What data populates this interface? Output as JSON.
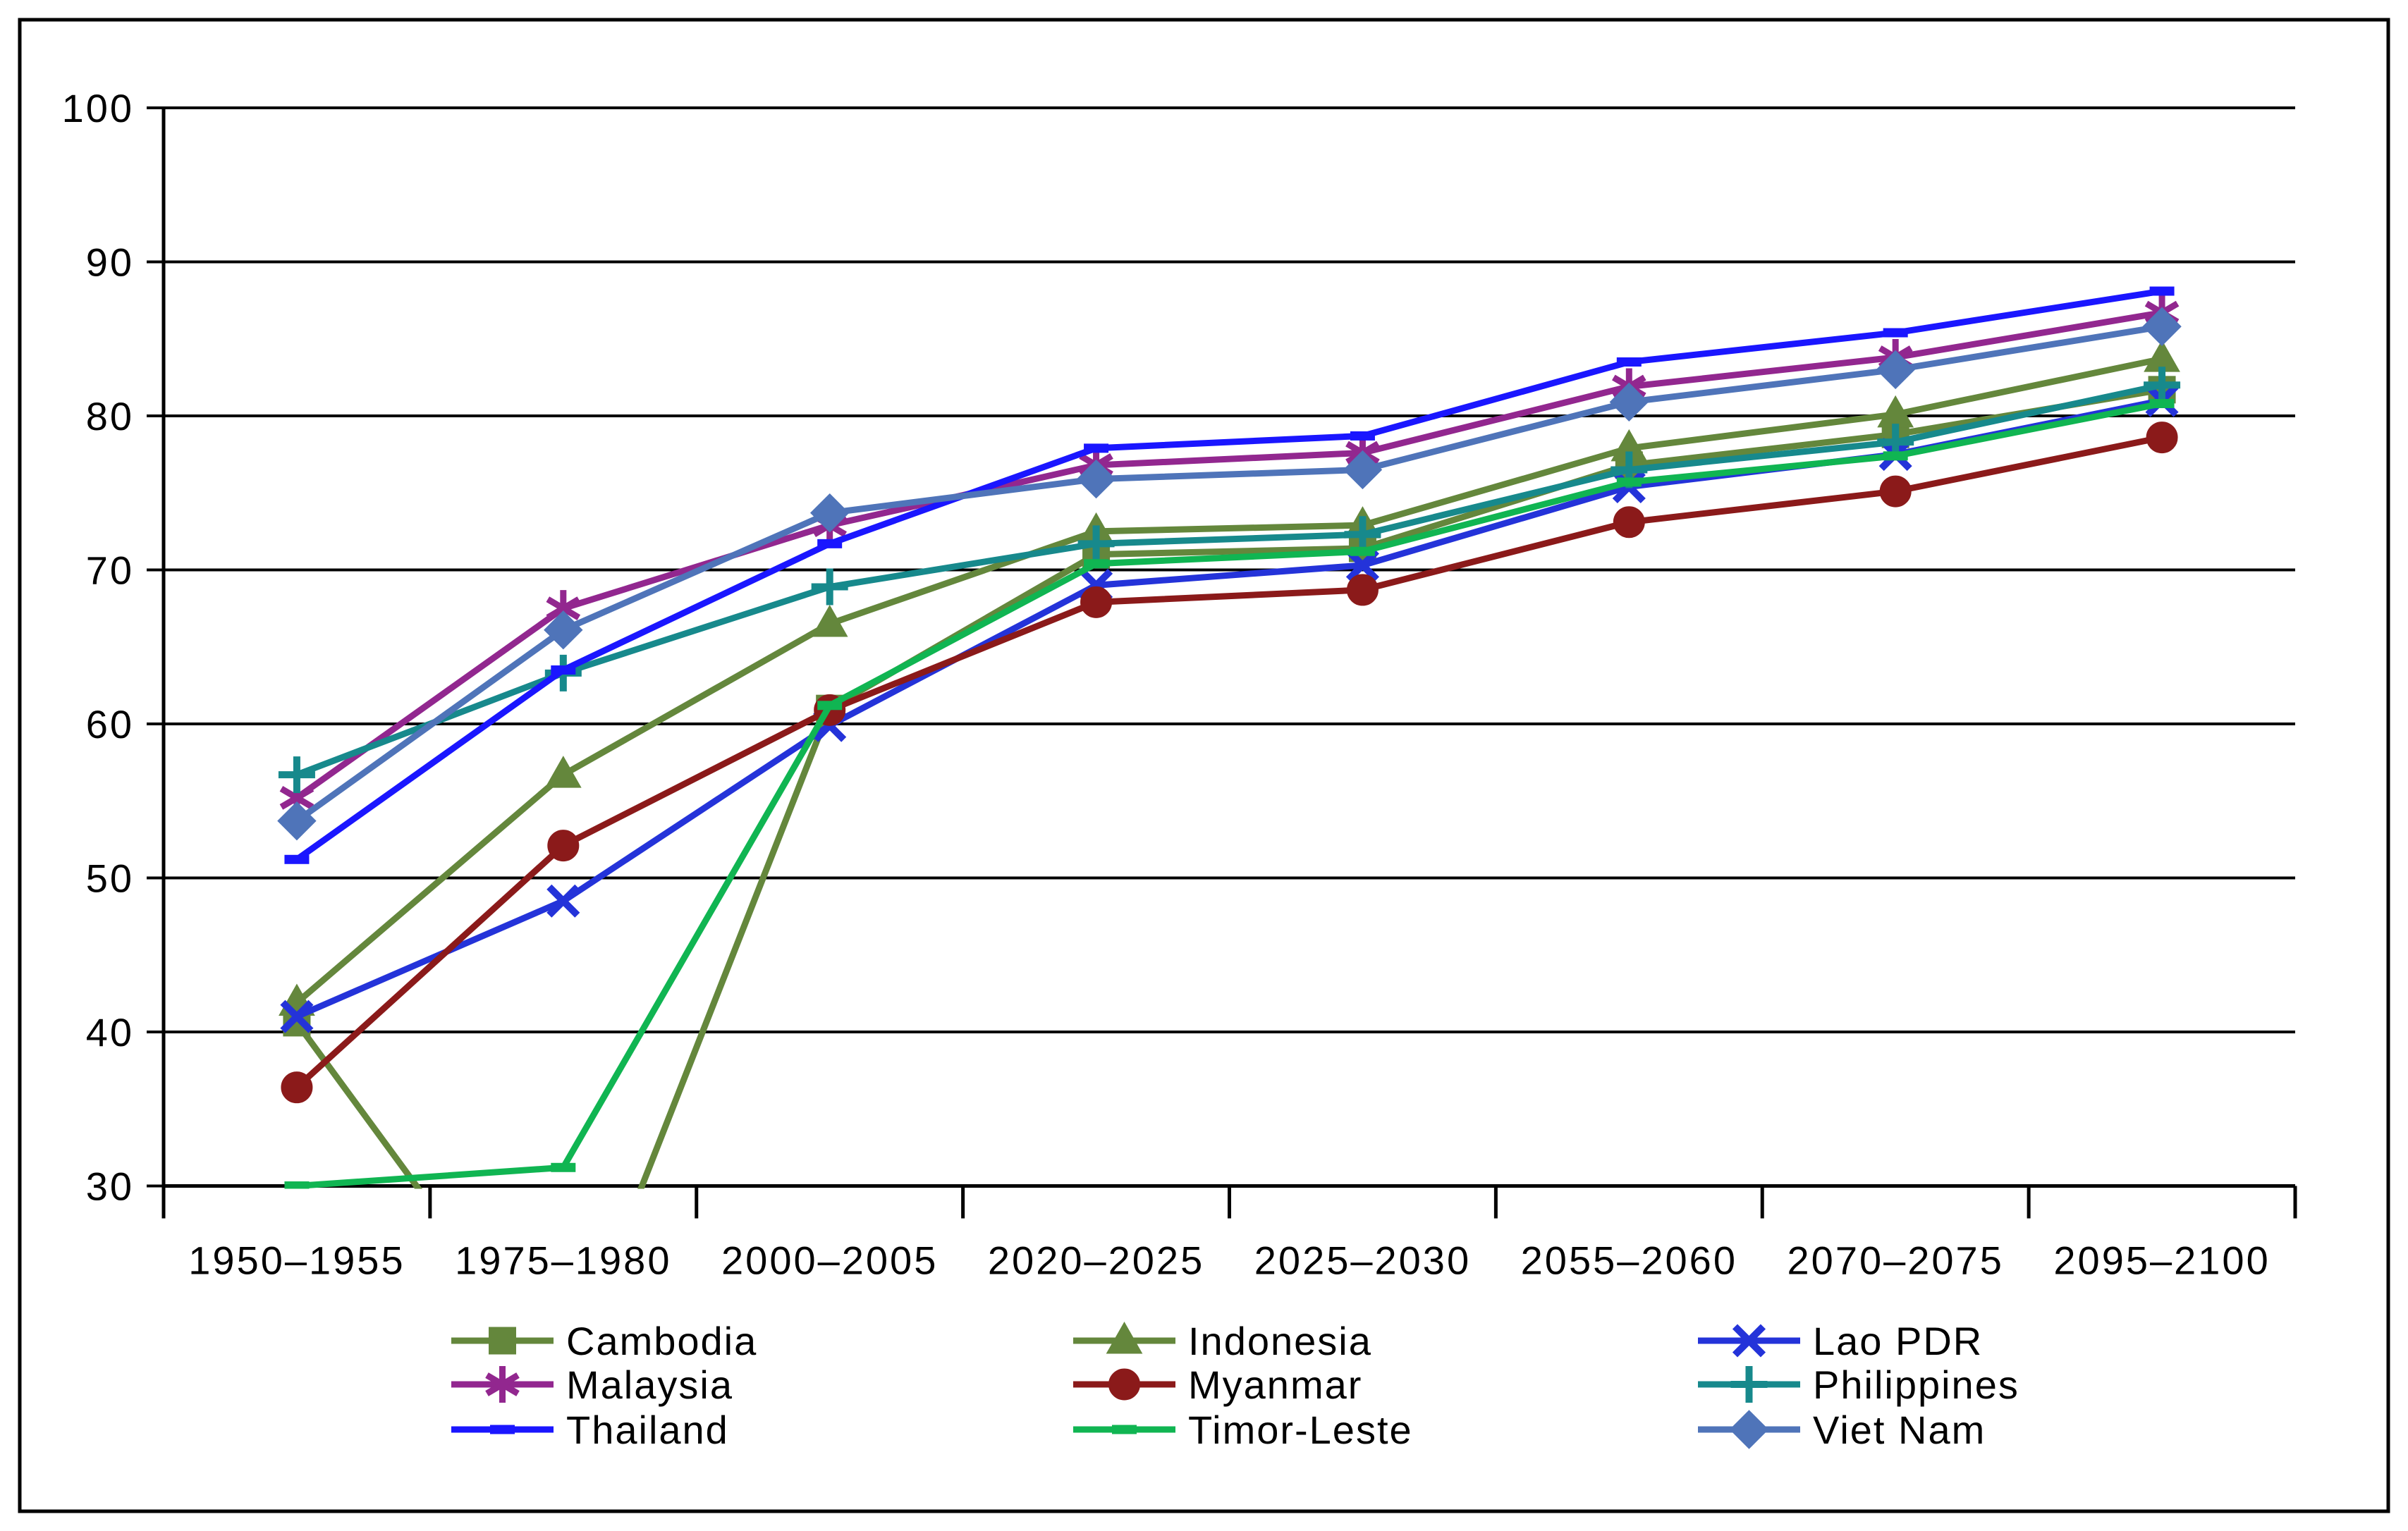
{
  "figure": {
    "background": "#ffffff",
    "border_color": "#000000",
    "axis_color": "#000000",
    "gridline_color": "#000000"
  },
  "chart_data": {
    "type": "line",
    "title": "",
    "xlabel": "",
    "ylabel": "",
    "categories": [
      "1950–1955",
      "1975–1980",
      "2000–2005",
      "2020–2025",
      "2025–2030",
      "2055–2060",
      "2070–2075",
      "2095–2100"
    ],
    "yticks": [
      30,
      40,
      50,
      60,
      70,
      80,
      90,
      100
    ],
    "ylim": [
      30,
      100
    ],
    "grid": "horizontal",
    "legend_position": "bottom",
    "legend_columns": 3,
    "series": [
      {
        "name": "Cambodia",
        "color": "#64873C",
        "marker": "square",
        "values": [
          40.6,
          17.0,
          61.0,
          71.0,
          71.4,
          76.8,
          78.8,
          81.7
        ]
      },
      {
        "name": "Indonesia",
        "color": "#64873C",
        "marker": "triangle",
        "values": [
          41.9,
          56.7,
          66.5,
          72.5,
          72.9,
          77.9,
          80.1,
          83.7
        ]
      },
      {
        "name": "Lao PDR",
        "color": "#2433D9",
        "marker": "x",
        "values": [
          41.0,
          48.5,
          59.9,
          69.0,
          70.3,
          75.4,
          77.5,
          81.0
        ]
      },
      {
        "name": "Malaysia",
        "color": "#92278F",
        "marker": "asterisk",
        "values": [
          55.2,
          67.5,
          72.9,
          76.8,
          77.6,
          81.9,
          83.8,
          86.7
        ]
      },
      {
        "name": "Myanmar",
        "color": "#8B1A1A",
        "marker": "circle",
        "values": [
          36.4,
          52.1,
          60.9,
          67.9,
          68.7,
          73.1,
          75.1,
          78.6
        ]
      },
      {
        "name": "Philippines",
        "color": "#17898C",
        "marker": "plus",
        "values": [
          56.7,
          63.3,
          68.9,
          71.7,
          72.3,
          76.5,
          78.3,
          82.0
        ]
      },
      {
        "name": "Thailand",
        "color": "#1A16FF",
        "marker": "dash",
        "values": [
          51.2,
          63.5,
          71.7,
          77.9,
          78.7,
          83.5,
          85.4,
          88.1
        ]
      },
      {
        "name": "Timor-Leste",
        "color": "#10B552",
        "marker": "dash",
        "values": [
          30.0,
          31.2,
          61.2,
          70.4,
          71.2,
          75.7,
          77.4,
          80.8
        ]
      },
      {
        "name": "Viet Nam",
        "color": "#4F74B9",
        "marker": "diamond",
        "values": [
          53.7,
          66.1,
          73.7,
          75.9,
          76.5,
          80.9,
          83.0,
          85.8
        ]
      }
    ]
  }
}
